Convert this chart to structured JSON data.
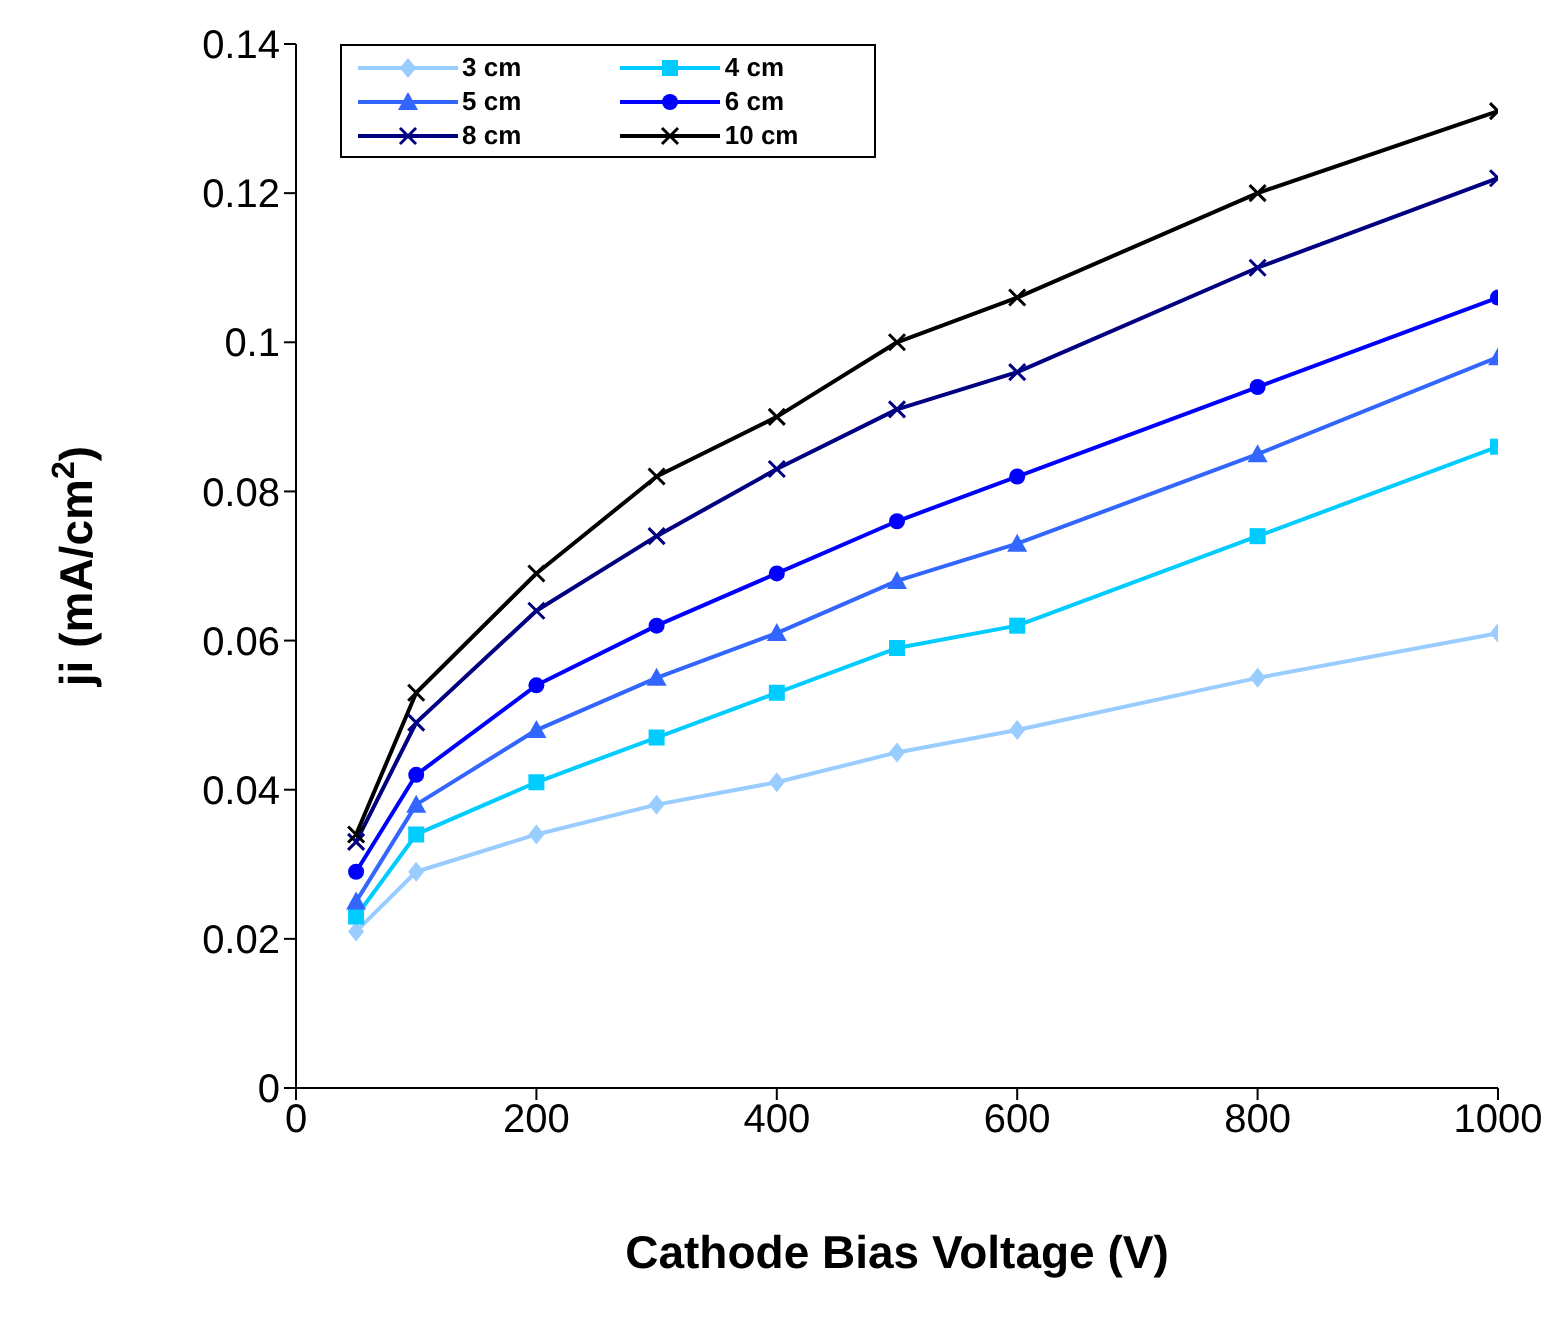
{
  "chart_data": {
    "type": "line",
    "xlabel": "Cathode Bias Voltage (V)",
    "ylabel": "ji (mA/cm$^{2}$)",
    "x": [
      50,
      100,
      200,
      300,
      400,
      500,
      600,
      800,
      1000
    ],
    "series": [
      {
        "name": "3 cm",
        "color": "#99ccff",
        "marker": "diamond",
        "values": [
          0.021,
          0.029,
          0.034,
          0.038,
          0.041,
          0.045,
          0.048,
          0.055,
          0.061
        ]
      },
      {
        "name": "4 cm",
        "color": "#00ccff",
        "marker": "square",
        "values": [
          0.023,
          0.034,
          0.041,
          0.047,
          0.053,
          0.059,
          0.062,
          0.074,
          0.086
        ]
      },
      {
        "name": "5 cm",
        "color": "#3366ff",
        "marker": "triangle",
        "values": [
          0.025,
          0.038,
          0.048,
          0.055,
          0.061,
          0.068,
          0.073,
          0.085,
          0.098
        ]
      },
      {
        "name": "6 cm",
        "color": "#0000ff",
        "marker": "circle",
        "values": [
          0.029,
          0.042,
          0.054,
          0.062,
          0.069,
          0.076,
          0.082,
          0.094,
          0.106
        ]
      },
      {
        "name": "8 cm",
        "color": "#000080",
        "marker": "cross",
        "values": [
          0.033,
          0.049,
          0.064,
          0.074,
          0.083,
          0.091,
          0.096,
          0.11,
          0.122
        ]
      },
      {
        "name": "10 cm",
        "color": "#000000",
        "marker": "cross",
        "values": [
          0.034,
          0.053,
          0.069,
          0.082,
          0.09,
          0.1,
          0.106,
          0.12,
          0.131
        ]
      }
    ],
    "xlim": [
      0,
      1000
    ],
    "xticks": [
      0,
      200,
      400,
      600,
      800,
      1000
    ],
    "ylim": [
      0,
      0.14
    ],
    "yticks": [
      0,
      0.02,
      0.04,
      0.06,
      0.08,
      0.1,
      0.12,
      0.14
    ],
    "grid": false,
    "legend": "top left",
    "line_style": "solid"
  }
}
